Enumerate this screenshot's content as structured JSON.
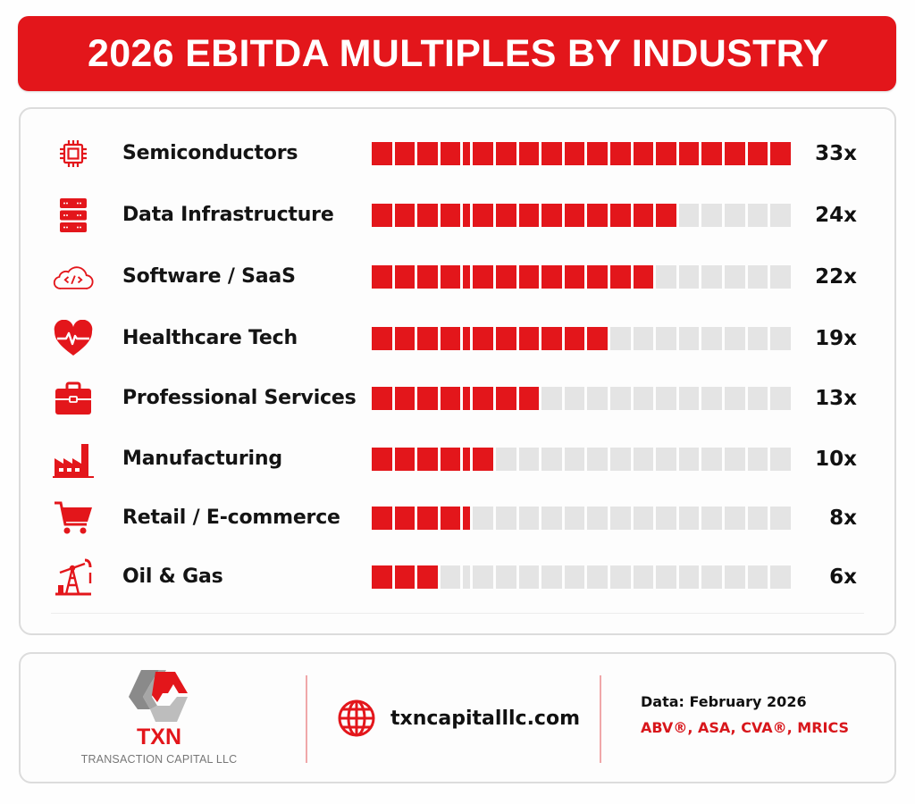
{
  "title": "2026 EBITDA MULTIPLES BY INDUSTRY",
  "colors": {
    "accent": "#e3161b",
    "empty": "#e4e4e4",
    "text": "#111111",
    "gray": "#808080"
  },
  "chart_data": {
    "type": "bar",
    "orientation": "horizontal",
    "title": "2026 EBITDA MULTIPLES BY INDUSTRY",
    "unit": "x (EBITDA multiple)",
    "total_cells": 19,
    "categories": [
      "Semiconductors",
      "Data Infrastructure",
      "Software / SaaS",
      "Healthcare Tech",
      "Professional Services",
      "Manufacturing",
      "Retail / E-commerce",
      "Oil & Gas"
    ],
    "values": [
      33,
      24,
      22,
      19,
      13,
      10,
      8,
      6
    ],
    "value_labels": [
      "33x",
      "24x",
      "22x",
      "19x",
      "13x",
      "10x",
      "8x",
      "6x"
    ],
    "filled_cells": [
      19,
      14,
      13,
      11,
      8,
      6,
      5,
      3
    ],
    "icons": [
      "chip-icon",
      "server-icon",
      "cloud-code-icon",
      "heart-pulse-icon",
      "briefcase-icon",
      "factory-icon",
      "cart-icon",
      "oil-pump-icon"
    ],
    "xlim": [
      0,
      33
    ],
    "grid": false,
    "legend": "none"
  },
  "footer": {
    "brand": "TXN",
    "company": "TRANSACTION CAPITAL LLC",
    "website": "txncapitalllc.com",
    "date": "Data: February 2026",
    "credentials": "ABV®, ASA, CVA®, MRICS"
  }
}
